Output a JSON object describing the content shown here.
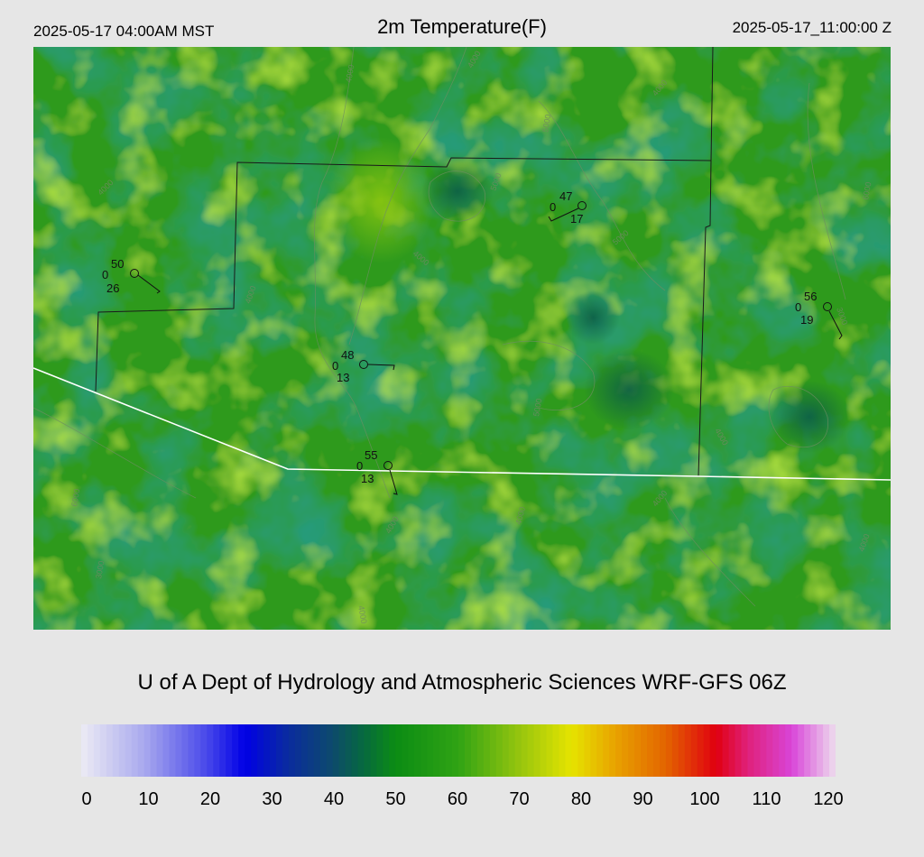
{
  "header": {
    "local_time": "2025-05-17 04:00AM MST",
    "title": "2m Temperature(F)",
    "utc_time": "2025-05-17_11:00:00 Z"
  },
  "credit": "U of A Dept of Hydrology and Atmospheric Sciences WRF-GFS 06Z",
  "colorbar": {
    "min": 0,
    "max": 120,
    "tick_labels": [
      "0",
      "10",
      "20",
      "30",
      "40",
      "50",
      "60",
      "70",
      "80",
      "90",
      "100",
      "110",
      "120"
    ],
    "stops": [
      {
        "v": 0,
        "c": "#ecebf4"
      },
      {
        "v": 10,
        "c": "#a9a9ee"
      },
      {
        "v": 20,
        "c": "#4848ea"
      },
      {
        "v": 26,
        "c": "#0000e6"
      },
      {
        "v": 33,
        "c": "#0a2c9e"
      },
      {
        "v": 40,
        "c": "#0d4a6c"
      },
      {
        "v": 45,
        "c": "#066a3e"
      },
      {
        "v": 50,
        "c": "#0b8c14"
      },
      {
        "v": 60,
        "c": "#30a314"
      },
      {
        "v": 70,
        "c": "#99c60e"
      },
      {
        "v": 78,
        "c": "#e6e400"
      },
      {
        "v": 85,
        "c": "#e8a200"
      },
      {
        "v": 93,
        "c": "#e36400"
      },
      {
        "v": 101,
        "c": "#e00010"
      },
      {
        "v": 106,
        "c": "#e0207a"
      },
      {
        "v": 113,
        "c": "#d845d8"
      },
      {
        "v": 120,
        "c": "#eedcee"
      }
    ]
  },
  "map": {
    "base_color": "#2f9a1a",
    "contour_labels": [
      "4000",
      "5000",
      "6000",
      "3000"
    ],
    "stations": [
      {
        "id": "stn-1",
        "temp": "50",
        "cloud": "0",
        "dew": "26"
      },
      {
        "id": "stn-2",
        "temp": "47",
        "cloud": "0",
        "dew": "17"
      },
      {
        "id": "stn-3",
        "temp": "48",
        "cloud": "0",
        "dew": "13"
      },
      {
        "id": "stn-4",
        "temp": "55",
        "cloud": "0",
        "dew": "13"
      },
      {
        "id": "stn-5",
        "temp": "56",
        "cloud": "0",
        "dew": "19"
      }
    ]
  }
}
